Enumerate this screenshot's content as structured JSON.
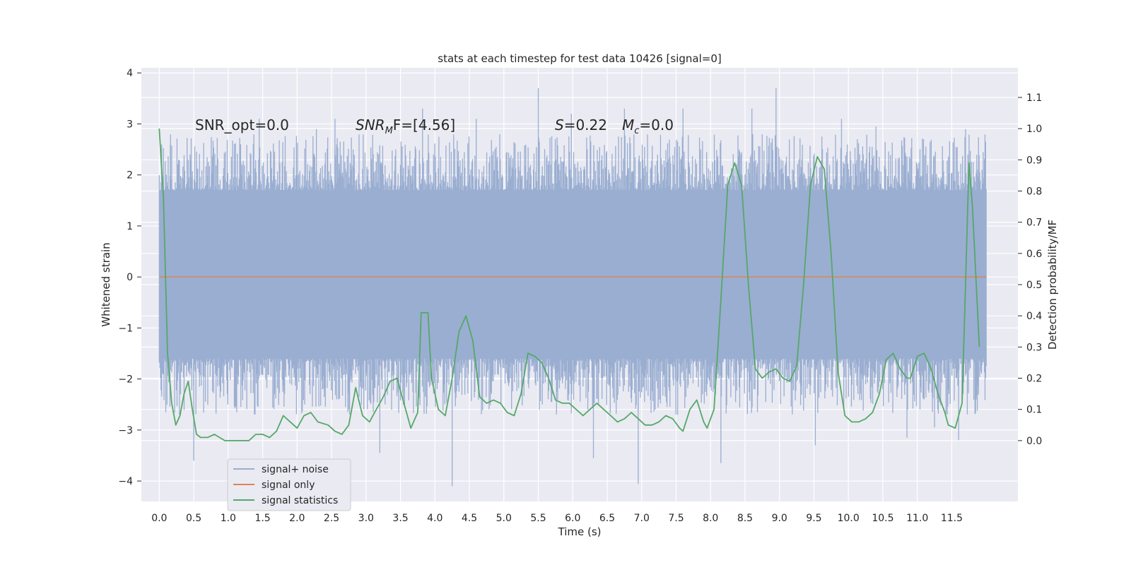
{
  "chart_data": {
    "type": "line",
    "title": "stats at each timestep for test data 10426 [signal=0]",
    "xlabel": "Time (s)",
    "ylabel": "Whitened strain",
    "ylabel_right": "Detection probability/MF",
    "xlim": [
      -0.26,
      12.46
    ],
    "ylim": [
      -4.4,
      4.1
    ],
    "ylim_right": [
      -0.195,
      1.195
    ],
    "x_ticks": [
      "0.0",
      "0.5",
      "1.0",
      "1.5",
      "2.0",
      "2.5",
      "3.0",
      "3.5",
      "4.0",
      "4.5",
      "5.0",
      "5.5",
      "6.0",
      "6.5",
      "7.0",
      "7.5",
      "8.0",
      "8.5",
      "9.0",
      "9.5",
      "10.0",
      "10.5",
      "11.0",
      "11.5"
    ],
    "y_ticks": [
      "4",
      "3",
      "2",
      "1",
      "0",
      "−1",
      "−2",
      "−3",
      "−4"
    ],
    "y_ticks_right": [
      "1.1",
      "1.0",
      "0.9",
      "0.8",
      "0.7",
      "0.6",
      "0.5",
      "0.4",
      "0.3",
      "0.2",
      "0.1",
      "0.0"
    ],
    "grid": true,
    "legend_position": "lower-left",
    "annotations": {
      "snr_opt": "SNR_opt=0.0",
      "snr_mf_main": "SNR",
      "snr_mf_sub": "M",
      "snr_mf_rest": "F=[4.56]",
      "s_main": "S",
      "s_rest": "=0.22",
      "mc_main": "M",
      "mc_sub": "c",
      "mc_rest": "=0.0"
    },
    "series": [
      {
        "name": "signal+ noise",
        "color": "#9aaed1",
        "description_values": {
          "x_start": 0.0,
          "x_end": 12.0,
          "band_low": -1.6,
          "band_high": 1.7,
          "spike_min": -4.1,
          "spike_max": 3.7
        },
        "spikes": [
          [
            0.16,
            2.6
          ],
          [
            0.28,
            2.3
          ],
          [
            0.5,
            -3.6
          ],
          [
            0.42,
            2.3
          ],
          [
            1.18,
            2.6
          ],
          [
            1.45,
            3.1
          ],
          [
            2.28,
            2.9
          ],
          [
            2.55,
            3.1
          ],
          [
            3.2,
            -3.45
          ],
          [
            3.82,
            3.3
          ],
          [
            4.25,
            -4.1
          ],
          [
            4.6,
            3.1
          ],
          [
            5.5,
            3.7
          ],
          [
            5.98,
            3.2
          ],
          [
            6.3,
            -3.55
          ],
          [
            6.75,
            3.3
          ],
          [
            6.95,
            -4.05
          ],
          [
            7.6,
            3.3
          ],
          [
            8.15,
            -3.65
          ],
          [
            8.6,
            3.3
          ],
          [
            8.95,
            3.7
          ],
          [
            9.52,
            -3.3
          ],
          [
            9.9,
            3.1
          ],
          [
            10.4,
            2.95
          ],
          [
            10.85,
            -3.15
          ],
          [
            11.25,
            -2.95
          ],
          [
            11.6,
            -3.2
          ],
          [
            11.7,
            2.9
          ]
        ]
      },
      {
        "name": "signal only",
        "color": "#dd8452",
        "values": [
          [
            0.0,
            0.0
          ],
          [
            12.0,
            0.0
          ]
        ]
      },
      {
        "name": "signal statistics",
        "color": "#55a868",
        "axis": "right",
        "points": [
          [
            0.0,
            1.0
          ],
          [
            0.06,
            0.78
          ],
          [
            0.12,
            0.28
          ],
          [
            0.18,
            0.12
          ],
          [
            0.24,
            0.05
          ],
          [
            0.3,
            0.08
          ],
          [
            0.36,
            0.15
          ],
          [
            0.42,
            0.19
          ],
          [
            0.48,
            0.1
          ],
          [
            0.54,
            0.02
          ],
          [
            0.6,
            0.01
          ],
          [
            0.7,
            0.01
          ],
          [
            0.8,
            0.02
          ],
          [
            0.95,
            0.0
          ],
          [
            1.1,
            0.0
          ],
          [
            1.3,
            0.0
          ],
          [
            1.4,
            0.02
          ],
          [
            1.5,
            0.02
          ],
          [
            1.6,
            0.01
          ],
          [
            1.7,
            0.03
          ],
          [
            1.8,
            0.08
          ],
          [
            1.9,
            0.06
          ],
          [
            2.0,
            0.04
          ],
          [
            2.1,
            0.08
          ],
          [
            2.2,
            0.09
          ],
          [
            2.3,
            0.06
          ],
          [
            2.45,
            0.05
          ],
          [
            2.55,
            0.03
          ],
          [
            2.65,
            0.02
          ],
          [
            2.75,
            0.05
          ],
          [
            2.85,
            0.17
          ],
          [
            2.95,
            0.08
          ],
          [
            3.05,
            0.06
          ],
          [
            3.15,
            0.1
          ],
          [
            3.25,
            0.14
          ],
          [
            3.35,
            0.19
          ],
          [
            3.45,
            0.2
          ],
          [
            3.55,
            0.12
          ],
          [
            3.65,
            0.04
          ],
          [
            3.75,
            0.09
          ],
          [
            3.8,
            0.41
          ],
          [
            3.9,
            0.41
          ],
          [
            3.95,
            0.2
          ],
          [
            4.05,
            0.1
          ],
          [
            4.15,
            0.08
          ],
          [
            4.25,
            0.2
          ],
          [
            4.35,
            0.35
          ],
          [
            4.45,
            0.4
          ],
          [
            4.55,
            0.32
          ],
          [
            4.65,
            0.14
          ],
          [
            4.75,
            0.12
          ],
          [
            4.85,
            0.13
          ],
          [
            4.95,
            0.12
          ],
          [
            5.05,
            0.09
          ],
          [
            5.15,
            0.08
          ],
          [
            5.25,
            0.15
          ],
          [
            5.35,
            0.28
          ],
          [
            5.45,
            0.27
          ],
          [
            5.55,
            0.25
          ],
          [
            5.65,
            0.2
          ],
          [
            5.75,
            0.13
          ],
          [
            5.85,
            0.12
          ],
          [
            5.95,
            0.12
          ],
          [
            6.05,
            0.1
          ],
          [
            6.15,
            0.08
          ],
          [
            6.25,
            0.1
          ],
          [
            6.35,
            0.12
          ],
          [
            6.45,
            0.1
          ],
          [
            6.55,
            0.08
          ],
          [
            6.65,
            0.06
          ],
          [
            6.75,
            0.07
          ],
          [
            6.85,
            0.09
          ],
          [
            6.95,
            0.07
          ],
          [
            7.05,
            0.05
          ],
          [
            7.15,
            0.05
          ],
          [
            7.25,
            0.06
          ],
          [
            7.35,
            0.08
          ],
          [
            7.45,
            0.07
          ],
          [
            7.55,
            0.04
          ],
          [
            7.6,
            0.03
          ],
          [
            7.7,
            0.1
          ],
          [
            7.8,
            0.13
          ],
          [
            7.9,
            0.06
          ],
          [
            7.95,
            0.04
          ],
          [
            8.05,
            0.1
          ],
          [
            8.15,
            0.45
          ],
          [
            8.25,
            0.82
          ],
          [
            8.35,
            0.89
          ],
          [
            8.45,
            0.82
          ],
          [
            8.55,
            0.5
          ],
          [
            8.65,
            0.23
          ],
          [
            8.75,
            0.2
          ],
          [
            8.85,
            0.22
          ],
          [
            8.95,
            0.23
          ],
          [
            9.05,
            0.2
          ],
          [
            9.15,
            0.19
          ],
          [
            9.25,
            0.24
          ],
          [
            9.35,
            0.5
          ],
          [
            9.45,
            0.82
          ],
          [
            9.55,
            0.91
          ],
          [
            9.65,
            0.87
          ],
          [
            9.75,
            0.6
          ],
          [
            9.85,
            0.22
          ],
          [
            9.95,
            0.08
          ],
          [
            10.05,
            0.06
          ],
          [
            10.15,
            0.06
          ],
          [
            10.25,
            0.07
          ],
          [
            10.35,
            0.09
          ],
          [
            10.45,
            0.15
          ],
          [
            10.55,
            0.26
          ],
          [
            10.65,
            0.28
          ],
          [
            10.75,
            0.23
          ],
          [
            10.85,
            0.2
          ],
          [
            10.9,
            0.2
          ],
          [
            11.0,
            0.27
          ],
          [
            11.1,
            0.28
          ],
          [
            11.2,
            0.23
          ],
          [
            11.3,
            0.15
          ],
          [
            11.4,
            0.09
          ],
          [
            11.45,
            0.05
          ],
          [
            11.55,
            0.04
          ],
          [
            11.65,
            0.12
          ],
          [
            11.7,
            0.5
          ],
          [
            11.75,
            0.89
          ],
          [
            11.8,
            0.75
          ],
          [
            11.9,
            0.3
          ]
        ],
        "note": ""
      }
    ]
  }
}
